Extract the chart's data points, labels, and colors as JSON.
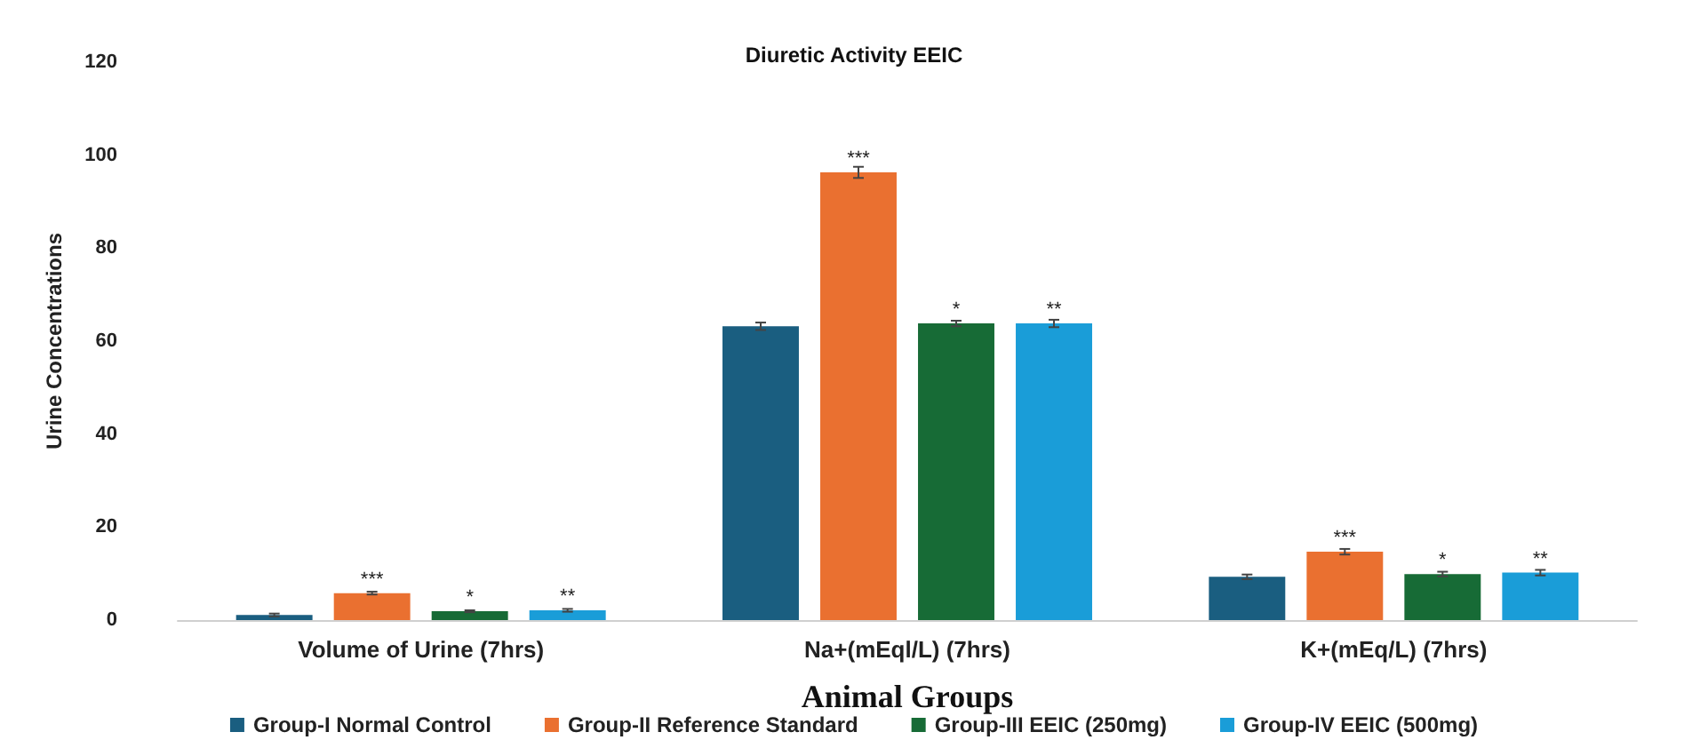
{
  "chart_data": {
    "type": "bar",
    "title": "Diuretic Activity EEIC",
    "xlabel": "Animal Groups",
    "ylabel": "Urine Concentrations",
    "categories": [
      "Volume of Urine (7hrs)",
      "Na+(mEql/L) (7hrs)",
      "K+(mEq/L) (7hrs)"
    ],
    "series": [
      {
        "name": "Group-I Normal Control",
        "color": "#1a5e80",
        "values": [
          1.1,
          63.2,
          9.3
        ],
        "errors": [
          0.3,
          0.8,
          0.5
        ]
      },
      {
        "name": "Group-II Reference Standard",
        "color": "#ea7030",
        "values": [
          5.8,
          96.3,
          14.7
        ],
        "errors": [
          0.3,
          1.2,
          0.6
        ],
        "value_labels": [
          "***",
          "***",
          "***"
        ]
      },
      {
        "name": "Group-III EEIC (250mg)",
        "color": "#176b36",
        "values": [
          1.9,
          63.8,
          9.9
        ],
        "errors": [
          0.2,
          0.6,
          0.5
        ],
        "value_labels": [
          "*",
          "*",
          "*"
        ]
      },
      {
        "name": "Group-IV EEIC (500mg)",
        "color": "#1a9dd8",
        "values": [
          2.1,
          63.8,
          10.2
        ],
        "errors": [
          0.3,
          0.8,
          0.6
        ],
        "value_labels": [
          "**",
          "**",
          "**"
        ]
      }
    ],
    "ylim": [
      0,
      120
    ],
    "yticks": [
      0,
      20,
      40,
      60,
      80,
      100,
      120
    ],
    "grid": false,
    "legend": "bottom"
  }
}
